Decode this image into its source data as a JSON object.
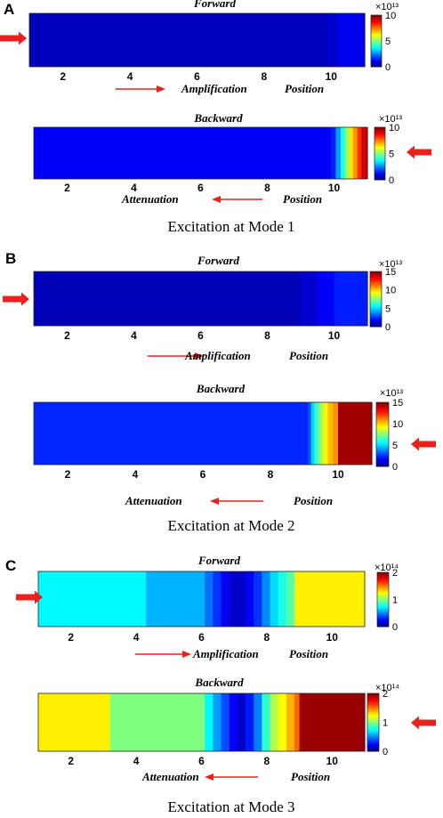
{
  "colorscale": "jet",
  "arrow_color": "#e8211d",
  "chart_data": [
    {
      "type": "heatmap",
      "panel_label": "A",
      "title": "Forward",
      "xlim": [
        1,
        11
      ],
      "xticks": [
        2,
        4,
        6,
        8,
        10
      ],
      "colorbar_range": [
        0,
        10
      ],
      "colorbar_ticks": [
        0,
        5,
        10
      ],
      "colorbar_exponent": "×10¹³",
      "annotation_left": "Amplification",
      "annotation_right": "Position",
      "arrow_direction": "right",
      "input_arrow": "left",
      "x": [
        1,
        9.7,
        9.9,
        10.2,
        11
      ],
      "values": [
        0.6,
        0.6,
        0.8,
        1.1,
        1.2
      ],
      "caption": ""
    },
    {
      "type": "heatmap",
      "panel_label": "",
      "title": "Backward",
      "xlim": [
        1,
        11
      ],
      "xticks": [
        2,
        4,
        6,
        8,
        10
      ],
      "colorbar_range": [
        0,
        10
      ],
      "colorbar_ticks": [
        0,
        5,
        10
      ],
      "colorbar_exponent": "×10¹³",
      "annotation_left": "Attenuation",
      "annotation_right": "Position",
      "arrow_direction": "left",
      "input_arrow": "right",
      "x": [
        1,
        9.9,
        10.05,
        10.2,
        10.32,
        10.45,
        10.57,
        10.7,
        10.82,
        11
      ],
      "values": [
        1.2,
        1.5,
        2.8,
        4.0,
        5.2,
        6.5,
        7.3,
        8.3,
        9.2,
        10
      ],
      "caption": "Excitation at Mode 1"
    },
    {
      "type": "heatmap",
      "panel_label": "B",
      "title": "Forward",
      "xlim": [
        1,
        11
      ],
      "xticks": [
        2,
        4,
        6,
        8,
        10
      ],
      "colorbar_range": [
        0,
        15
      ],
      "colorbar_ticks": [
        0,
        5,
        10,
        15
      ],
      "colorbar_exponent": "×10¹³",
      "annotation_left": "Amplification",
      "annotation_right": "Position",
      "arrow_direction": "right",
      "input_arrow": "left",
      "x": [
        1,
        8.5,
        9.0,
        9.5,
        10.0,
        11
      ],
      "values": [
        0.8,
        0.8,
        1.2,
        1.8,
        2.3,
        2.4
      ],
      "caption": ""
    },
    {
      "type": "heatmap",
      "panel_label": "",
      "title": "Backward",
      "xlim": [
        1,
        11
      ],
      "xticks": [
        2,
        4,
        6,
        8,
        10
      ],
      "colorbar_range": [
        0,
        15
      ],
      "colorbar_ticks": [
        0,
        5,
        10,
        15
      ],
      "colorbar_exponent": "×10¹³",
      "annotation_left": "Attenuation",
      "annotation_right": "Position",
      "arrow_direction": "left",
      "input_arrow": "right",
      "x": [
        1,
        9.1,
        9.2,
        9.3,
        9.4,
        9.5,
        9.6,
        9.7,
        9.85,
        10.0,
        11
      ],
      "values": [
        2.4,
        3.0,
        5.0,
        6.3,
        7.4,
        8.6,
        9.5,
        10.4,
        11.0,
        14.5,
        14.5
      ],
      "caption": "Excitation at Mode 2"
    },
    {
      "type": "heatmap",
      "panel_label": "C",
      "title": "Forward",
      "xlim": [
        1,
        11
      ],
      "xticks": [
        2,
        4,
        6,
        8,
        10
      ],
      "colorbar_range": [
        0,
        2
      ],
      "colorbar_ticks": [
        0,
        1,
        2
      ],
      "colorbar_exponent": "×10¹⁴",
      "annotation_left": "Amplification",
      "annotation_right": "Position",
      "arrow_direction": "right",
      "input_arrow": "left",
      "x": [
        1,
        4.3,
        6.1,
        6.35,
        6.6,
        6.85,
        7.1,
        7.35,
        7.6,
        7.85,
        8.1,
        8.35,
        8.6,
        8.85,
        11
      ],
      "values": [
        0.74,
        0.6,
        0.47,
        0.35,
        0.23,
        0.14,
        0.14,
        0.23,
        0.35,
        0.52,
        0.68,
        0.8,
        0.92,
        1.28,
        1.28
      ],
      "caption": ""
    },
    {
      "type": "heatmap",
      "panel_label": "",
      "title": "Backward",
      "xlim": [
        1,
        11
      ],
      "xticks": [
        2,
        4,
        6,
        8,
        10
      ],
      "colorbar_range": [
        0,
        2
      ],
      "colorbar_ticks": [
        0,
        1,
        2
      ],
      "colorbar_exponent": "×10¹⁴",
      "annotation_left": "Attenuation",
      "annotation_right": "Position",
      "arrow_direction": "left",
      "input_arrow": "right",
      "x": [
        1,
        3.2,
        6.1,
        6.35,
        6.6,
        6.85,
        7.1,
        7.35,
        7.6,
        7.85,
        8.1,
        8.35,
        8.6,
        8.85,
        9.0,
        11
      ],
      "values": [
        1.28,
        1.0,
        0.74,
        0.56,
        0.4,
        0.24,
        0.14,
        0.3,
        0.5,
        0.84,
        1.1,
        1.25,
        1.4,
        1.55,
        1.95,
        1.95
      ],
      "caption": "Excitation at Mode 3"
    }
  ]
}
